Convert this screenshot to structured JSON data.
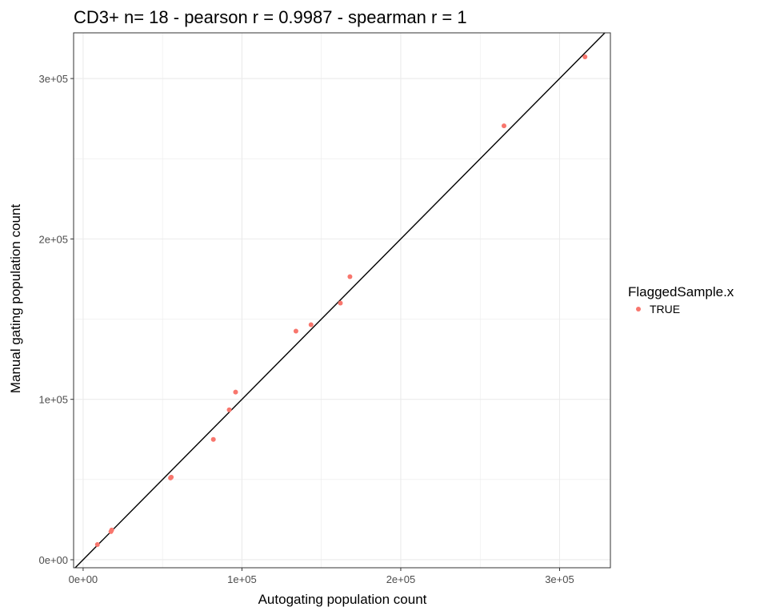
{
  "chart_data": {
    "type": "scatter",
    "title": "CD3+ n= 18 - pearson r = 0.9987 - spearman r = 1",
    "xlabel": "Autogating population count",
    "ylabel": "Manual gating population count",
    "xlim": [
      -6000,
      332000
    ],
    "ylim": [
      -5000,
      328500
    ],
    "x_ticks": [
      {
        "value": 0,
        "label": "0e+00"
      },
      {
        "value": 100000,
        "label": "1e+05"
      },
      {
        "value": 200000,
        "label": "2e+05"
      },
      {
        "value": 300000,
        "label": "3e+05"
      }
    ],
    "y_ticks": [
      {
        "value": 0,
        "label": "0e+00"
      },
      {
        "value": 100000,
        "label": "1e+05"
      },
      {
        "value": 200000,
        "label": "2e+05"
      },
      {
        "value": 300000,
        "label": "3e+05"
      }
    ],
    "grid": true,
    "reference_line": {
      "type": "identity",
      "color": "#000000"
    },
    "legend": {
      "title": "FlaggedSample.x",
      "position": "right",
      "entries": [
        {
          "label": "TRUE",
          "color": "#F8766D"
        }
      ]
    },
    "series": [
      {
        "name": "TRUE",
        "color": "#F8766D",
        "points": [
          {
            "x": 9000,
            "y": 9500
          },
          {
            "x": 17500,
            "y": 17500
          },
          {
            "x": 18000,
            "y": 18500
          },
          {
            "x": 55000,
            "y": 51000
          },
          {
            "x": 55500,
            "y": 51500
          },
          {
            "x": 82000,
            "y": 75000
          },
          {
            "x": 92000,
            "y": 93500
          },
          {
            "x": 96000,
            "y": 104500
          },
          {
            "x": 134000,
            "y": 142500
          },
          {
            "x": 143500,
            "y": 146500
          },
          {
            "x": 162000,
            "y": 160000
          },
          {
            "x": 168000,
            "y": 176500
          },
          {
            "x": 265000,
            "y": 270500
          },
          {
            "x": 316000,
            "y": 313500
          }
        ]
      }
    ]
  }
}
